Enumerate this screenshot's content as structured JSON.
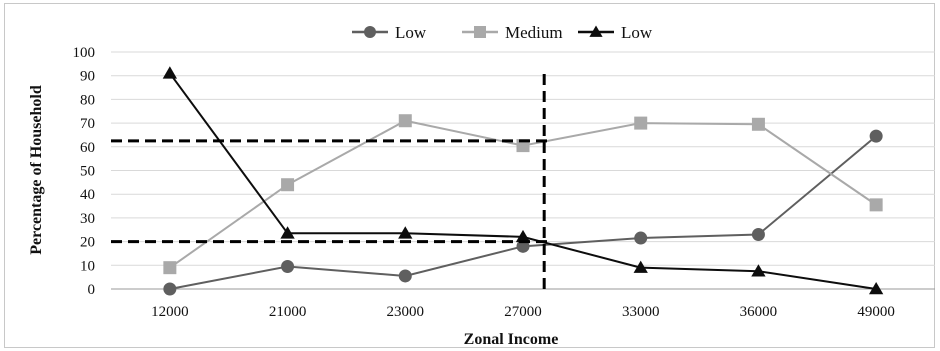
{
  "chart_data": {
    "type": "line",
    "categories": [
      "12000",
      "21000",
      "23000",
      "27000",
      "33000",
      "36000",
      "49000"
    ],
    "series": [
      {
        "name": "Low",
        "marker": "circle",
        "color": "#5f5f5f",
        "values": [
          0,
          9.5,
          5.5,
          18,
          21.5,
          23,
          64.5
        ]
      },
      {
        "name": "Medium",
        "marker": "square",
        "color": "#a9a9a9",
        "values": [
          9,
          44,
          71,
          60.5,
          70,
          69.5,
          35.5
        ]
      },
      {
        "name": "Low",
        "marker": "triangle",
        "color": "#0d0d0d",
        "values": [
          91,
          23.5,
          23.5,
          22,
          9,
          7.5,
          0
        ]
      }
    ],
    "yticks": [
      "0",
      "10",
      "20",
      "30",
      "40",
      "50",
      "60",
      "70",
      "80",
      "90",
      "100"
    ],
    "ylim": [
      0,
      100
    ],
    "xlabel": "Zonal Income",
    "ylabel": "Percentage of Household",
    "grid": "horizontal",
    "legend_position": "top-center",
    "reference_lines": [
      {
        "orientation": "horizontal",
        "y": 62.5
      },
      {
        "orientation": "horizontal",
        "y": 20
      },
      {
        "orientation": "vertical",
        "x_between": [
          "27000",
          "33000"
        ],
        "fraction": 0.18
      }
    ]
  }
}
